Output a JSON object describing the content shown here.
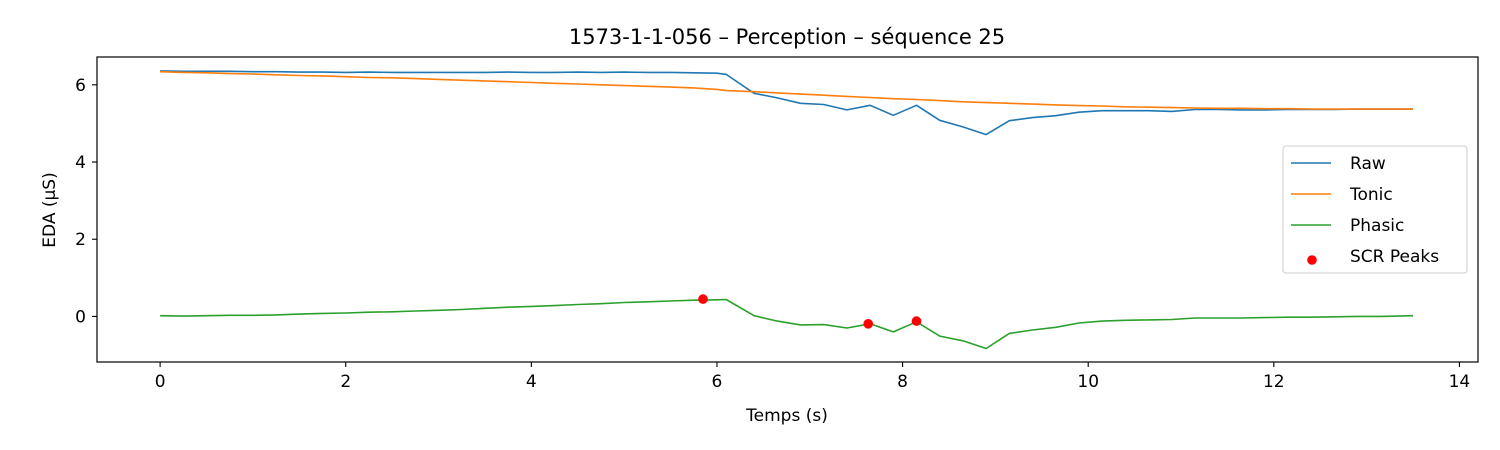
{
  "chart_data": {
    "type": "line",
    "title": "1573-1-1-056 – Perception – séquence 25",
    "xlabel": "Temps (s)",
    "ylabel": "EDA (µS)",
    "xlim": [
      -0.68,
      14.2
    ],
    "ylim": [
      -1.18,
      6.72
    ],
    "xticks": [
      0,
      2,
      4,
      6,
      8,
      10,
      12,
      14
    ],
    "yticks": [
      0,
      2,
      4,
      6
    ],
    "grid": false,
    "legend_position": "center-right",
    "x": [
      0,
      0.25,
      0.5,
      0.75,
      1.0,
      1.25,
      1.5,
      1.75,
      2.0,
      2.25,
      2.5,
      2.75,
      3.0,
      3.25,
      3.5,
      3.75,
      4.0,
      4.25,
      4.5,
      4.75,
      5.0,
      5.25,
      5.5,
      5.75,
      6.0,
      6.1,
      6.4,
      6.65,
      6.9,
      7.15,
      7.4,
      7.65,
      7.9,
      8.15,
      8.4,
      8.65,
      8.9,
      9.15,
      9.4,
      9.65,
      9.9,
      10.15,
      10.4,
      10.65,
      10.9,
      11.15,
      11.4,
      11.65,
      11.9,
      12.15,
      12.4,
      12.65,
      12.9,
      13.15,
      13.5
    ],
    "series": [
      {
        "name": "Raw",
        "color": "#1f77b4",
        "values": [
          6.36,
          6.35,
          6.35,
          6.35,
          6.34,
          6.34,
          6.33,
          6.33,
          6.32,
          6.33,
          6.32,
          6.32,
          6.32,
          6.32,
          6.32,
          6.33,
          6.32,
          6.32,
          6.33,
          6.32,
          6.33,
          6.32,
          6.32,
          6.31,
          6.3,
          6.27,
          5.78,
          5.66,
          5.52,
          5.49,
          5.35,
          5.47,
          5.21,
          5.47,
          5.08,
          4.91,
          4.71,
          5.07,
          5.15,
          5.2,
          5.29,
          5.33,
          5.33,
          5.33,
          5.31,
          5.36,
          5.36,
          5.35,
          5.35,
          5.36,
          5.36,
          5.36,
          5.37,
          5.37,
          5.37
        ]
      },
      {
        "name": "Tonic",
        "color": "#ff7f0e",
        "values": [
          6.34,
          6.32,
          6.31,
          6.29,
          6.28,
          6.26,
          6.24,
          6.23,
          6.21,
          6.19,
          6.18,
          6.16,
          6.14,
          6.12,
          6.1,
          6.08,
          6.06,
          6.04,
          6.02,
          6.0,
          5.98,
          5.96,
          5.94,
          5.92,
          5.88,
          5.85,
          5.82,
          5.79,
          5.76,
          5.73,
          5.7,
          5.67,
          5.64,
          5.62,
          5.59,
          5.56,
          5.54,
          5.52,
          5.5,
          5.48,
          5.46,
          5.45,
          5.43,
          5.42,
          5.41,
          5.4,
          5.39,
          5.39,
          5.38,
          5.38,
          5.37,
          5.37,
          5.37,
          5.37,
          5.37
        ]
      },
      {
        "name": "Phasic",
        "color": "#2ca02c",
        "values": [
          0.02,
          0.01,
          0.02,
          0.03,
          0.03,
          0.04,
          0.06,
          0.08,
          0.09,
          0.11,
          0.12,
          0.14,
          0.16,
          0.18,
          0.21,
          0.24,
          0.26,
          0.28,
          0.31,
          0.33,
          0.36,
          0.38,
          0.4,
          0.42,
          0.43,
          0.44,
          0.02,
          -0.12,
          -0.22,
          -0.21,
          -0.3,
          -0.19,
          -0.4,
          -0.14,
          -0.51,
          -0.63,
          -0.83,
          -0.44,
          -0.35,
          -0.28,
          -0.17,
          -0.12,
          -0.1,
          -0.09,
          -0.08,
          -0.04,
          -0.04,
          -0.04,
          -0.03,
          -0.02,
          -0.02,
          -0.01,
          0.0,
          0.0,
          0.02
        ]
      }
    ],
    "scatter": {
      "name": "SCR Peaks",
      "color": "#ff0000",
      "points": [
        {
          "x": 5.85,
          "y": 0.45
        },
        {
          "x": 7.63,
          "y": -0.19
        },
        {
          "x": 8.15,
          "y": -0.12
        }
      ]
    }
  }
}
